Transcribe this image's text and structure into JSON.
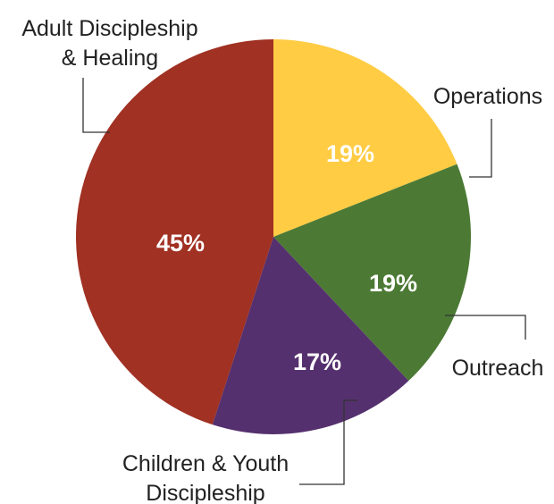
{
  "chart_data": {
    "type": "pie",
    "slices": [
      {
        "label_lines": [
          "Operations"
        ],
        "value": 19,
        "value_label": "19%",
        "color": "#FFCC44"
      },
      {
        "label_lines": [
          "Outreach"
        ],
        "value": 19,
        "value_label": "19%",
        "color": "#4C7A35"
      },
      {
        "label_lines": [
          "Children & Youth",
          "Discipleship"
        ],
        "value": 17,
        "value_label": "17%",
        "color": "#55306E"
      },
      {
        "label_lines": [
          "Adult Discipleship",
          "& Healing"
        ],
        "value": 45,
        "value_label": "45%",
        "color": "#A03123"
      }
    ]
  }
}
